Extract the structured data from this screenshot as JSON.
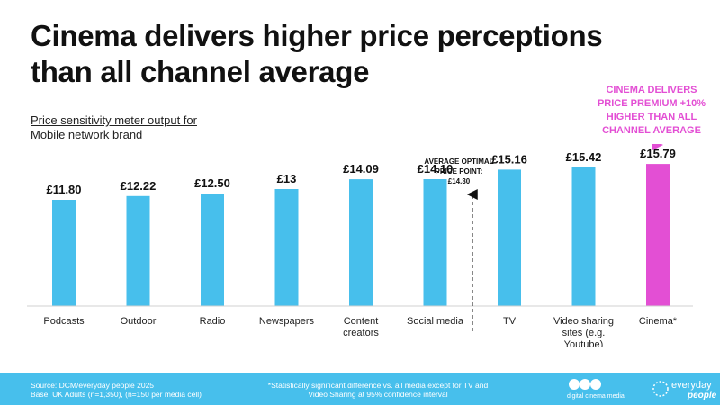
{
  "title": "Cinema delivers higher price perceptions than all channel average",
  "subtitle_lines": [
    "Price sensitivity meter output for",
    "Mobile network brand"
  ],
  "callout_lines": [
    "CINEMA DELIVERS",
    "PRICE PREMIUM +10%",
    "HIGHER THAN ALL",
    "CHANNEL AVERAGE"
  ],
  "average_label_lines": [
    "AVERAGE OPTIMAL",
    "PRICE POINT:",
    "£14.30"
  ],
  "footer": {
    "source_lines": [
      "Source: DCM/everyday people 2025",
      "Base: UK Adults (n=1,350), (n=150 per media cell)"
    ],
    "note_lines": [
      "*Statistically significant difference vs. all media except for TV and",
      "Video Sharing at 95% confidence interval"
    ],
    "logo_dcm_text": "digital cinema media",
    "logo_ep_text_1": "everyday",
    "logo_ep_text_2": "people"
  },
  "colors": {
    "bar": "#47bfec",
    "highlight": "#e34fd4",
    "footer": "#47bfec"
  },
  "chart_data": {
    "type": "bar",
    "title": "",
    "categories": [
      "Podcasts",
      "Outdoor",
      "Radio",
      "Newspapers",
      "Content creators",
      "Social media",
      "TV",
      "Video sharing sites (e.g. Youtube)",
      "Cinema*"
    ],
    "category_lines": [
      [
        "Podcasts"
      ],
      [
        "Outdoor"
      ],
      [
        "Radio"
      ],
      [
        "Newspapers"
      ],
      [
        "Content",
        "creators"
      ],
      [
        "Social media"
      ],
      [
        "TV"
      ],
      [
        "Video sharing",
        "sites (e.g.",
        "Youtube)"
      ],
      [
        "Cinema*"
      ]
    ],
    "values": [
      11.8,
      12.22,
      12.5,
      13.0,
      14.09,
      14.1,
      15.16,
      15.42,
      15.79
    ],
    "value_labels": [
      "£11.80",
      "£12.22",
      "£12.50",
      "£13",
      "£14.09",
      "£14.10",
      "£15.16",
      "£15.42",
      "£15.79"
    ],
    "highlight_index": 8,
    "reference_line": {
      "value": 14.3,
      "position": "between Social media and TV"
    },
    "ylim": [
      0,
      20
    ],
    "xlabel": "",
    "ylabel": "",
    "grid": false,
    "legend": "none"
  }
}
